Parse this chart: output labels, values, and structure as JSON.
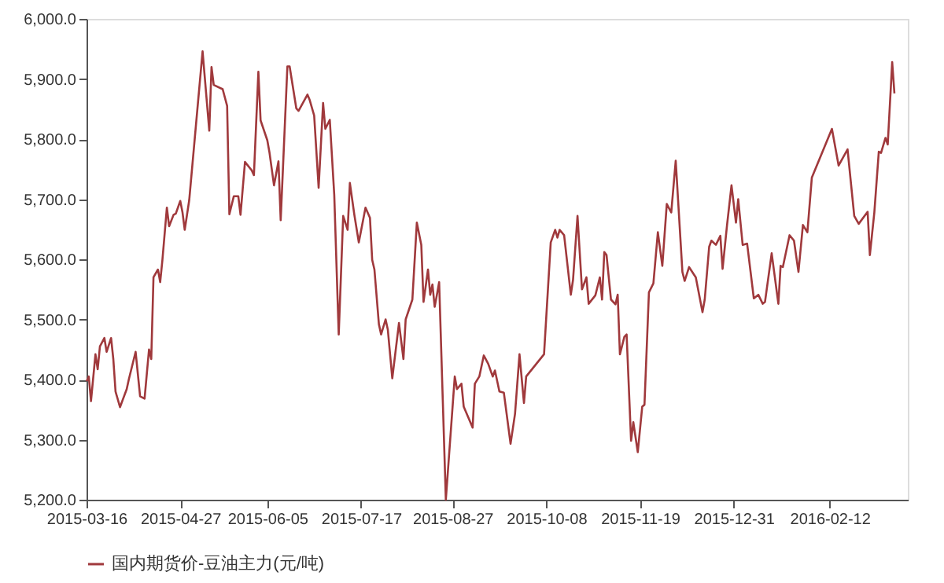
{
  "chart_data": {
    "type": "line",
    "legend": "bottom",
    "grid": false,
    "marker": "none",
    "line_style": "solid",
    "x": [
      "2015-03-16",
      "2015-03-17",
      "2015-03-18",
      "2015-03-20",
      "2015-03-21",
      "2015-03-22",
      "2015-03-24",
      "2015-03-25",
      "2015-03-27",
      "2015-03-28",
      "2015-03-29",
      "2015-03-31",
      "2015-04-03",
      "2015-04-04",
      "2015-04-07",
      "2015-04-09",
      "2015-04-11",
      "2015-04-13",
      "2015-04-14",
      "2015-04-15",
      "2015-04-17",
      "2015-04-18",
      "2015-04-19",
      "2015-04-21",
      "2015-04-22",
      "2015-04-24",
      "2015-04-25",
      "2015-04-27",
      "2015-04-28",
      "2015-04-29",
      "2015-05-01",
      "2015-05-04",
      "2015-05-07",
      "2015-05-10",
      "2015-05-11",
      "2015-05-12",
      "2015-05-16",
      "2015-05-18",
      "2015-05-19",
      "2015-05-21",
      "2015-05-23",
      "2015-05-24",
      "2015-05-26",
      "2015-05-29",
      "2015-05-30",
      "2015-06-01",
      "2015-06-02",
      "2015-06-05",
      "2015-06-06",
      "2015-06-08",
      "2015-06-10",
      "2015-06-11",
      "2015-06-14",
      "2015-06-15",
      "2015-06-18",
      "2015-06-19",
      "2015-06-23",
      "2015-06-24",
      "2015-06-26",
      "2015-06-28",
      "2015-06-30",
      "2015-07-01",
      "2015-07-03",
      "2015-07-05",
      "2015-07-07",
      "2015-07-09",
      "2015-07-11",
      "2015-07-12",
      "2015-07-14",
      "2015-07-16",
      "2015-07-19",
      "2015-07-21",
      "2015-07-22",
      "2015-07-23",
      "2015-07-25",
      "2015-07-26",
      "2015-07-28",
      "2015-07-29",
      "2015-07-31",
      "2015-08-03",
      "2015-08-05",
      "2015-08-06",
      "2015-08-09",
      "2015-08-11",
      "2015-08-13",
      "2015-08-14",
      "2015-08-16",
      "2015-08-17",
      "2015-08-18",
      "2015-08-19",
      "2015-08-20",
      "2015-08-21",
      "2015-08-24",
      "2015-08-28",
      "2015-08-29",
      "2015-08-31",
      "2015-09-01",
      "2015-09-05",
      "2015-09-06",
      "2015-09-08",
      "2015-09-10",
      "2015-09-12",
      "2015-09-14",
      "2015-09-15",
      "2015-09-17",
      "2015-09-19",
      "2015-09-22",
      "2015-09-24",
      "2015-09-26",
      "2015-09-28",
      "2015-09-29",
      "2015-10-07",
      "2015-10-10",
      "2015-10-12",
      "2015-10-13",
      "2015-10-14",
      "2015-10-16",
      "2015-10-19",
      "2015-10-20",
      "2015-10-22",
      "2015-10-24",
      "2015-10-26",
      "2015-10-27",
      "2015-10-30",
      "2015-11-01",
      "2015-11-02",
      "2015-11-03",
      "2015-11-04",
      "2015-11-06",
      "2015-11-08",
      "2015-11-09",
      "2015-11-10",
      "2015-11-12",
      "2015-11-13",
      "2015-11-15",
      "2015-11-16",
      "2015-11-18",
      "2015-11-20",
      "2015-11-21",
      "2015-11-23",
      "2015-11-25",
      "2015-11-27",
      "2015-11-29",
      "2015-12-01",
      "2015-12-03",
      "2015-12-05",
      "2015-12-08",
      "2015-12-09",
      "2015-12-11",
      "2015-12-14",
      "2015-12-17",
      "2015-12-18",
      "2015-12-20",
      "2015-12-21",
      "2015-12-23",
      "2015-12-25",
      "2015-12-26",
      "2015-12-28",
      "2015-12-30",
      "2016-01-01",
      "2016-01-02",
      "2016-01-04",
      "2016-01-06",
      "2016-01-09",
      "2016-01-11",
      "2016-01-13",
      "2016-01-14",
      "2016-01-17",
      "2016-01-20",
      "2016-01-21",
      "2016-01-22",
      "2016-01-25",
      "2016-01-27",
      "2016-01-29",
      "2016-01-31",
      "2016-02-02",
      "2016-02-04",
      "2016-02-13",
      "2016-02-16",
      "2016-02-20",
      "2016-02-23",
      "2016-02-25",
      "2016-02-29",
      "2016-03-01",
      "2016-03-03",
      "2016-03-05",
      "2016-03-06",
      "2016-03-08",
      "2016-03-09",
      "2016-03-11",
      "2016-03-12"
    ],
    "series": [
      {
        "name": "国内期货价-豆油主力(元/吨)",
        "color": "#a0393c",
        "values": [
          5397,
          5405,
          5364,
          5442,
          5417,
          5455,
          5469,
          5446,
          5469,
          5434,
          5380,
          5354,
          5384,
          5401,
          5446,
          5372,
          5368,
          5450,
          5434,
          5570,
          5583,
          5562,
          5599,
          5686,
          5655,
          5674,
          5676,
          5697,
          5678,
          5649,
          5698,
          5822,
          5946,
          5814,
          5920,
          5890,
          5883,
          5855,
          5675,
          5705,
          5705,
          5674,
          5762,
          5748,
          5740,
          5912,
          5831,
          5798,
          5777,
          5723,
          5763,
          5665,
          5921,
          5921,
          5851,
          5847,
          5874,
          5865,
          5839,
          5719,
          5860,
          5817,
          5832,
          5707,
          5475,
          5672,
          5649,
          5727,
          5674,
          5628,
          5686,
          5669,
          5599,
          5583,
          5492,
          5475,
          5500,
          5483,
          5402,
          5494,
          5434,
          5500,
          5533,
          5661,
          5624,
          5529,
          5583,
          5541,
          5558,
          5521,
          5541,
          5562,
          5200,
          5405,
          5384,
          5393,
          5355,
          5320,
          5393,
          5405,
          5440,
          5426,
          5405,
          5415,
          5380,
          5378,
          5293,
          5343,
          5442,
          5361,
          5405,
          5442,
          5628,
          5649,
          5636,
          5649,
          5640,
          5541,
          5566,
          5672,
          5550,
          5570,
          5526,
          5540,
          5570,
          5533,
          5612,
          5607,
          5533,
          5525,
          5541,
          5442,
          5471,
          5475,
          5298,
          5329,
          5279,
          5355,
          5358,
          5545,
          5560,
          5645,
          5589,
          5692,
          5678,
          5764,
          5579,
          5564,
          5587,
          5570,
          5512,
          5533,
          5621,
          5631,
          5624,
          5639,
          5584,
          5657,
          5723,
          5661,
          5700,
          5624,
          5626,
          5535,
          5541,
          5526,
          5529,
          5610,
          5526,
          5589,
          5587,
          5640,
          5631,
          5579,
          5657,
          5645,
          5736,
          5817,
          5756,
          5783,
          5672,
          5659,
          5679,
          5607,
          5678,
          5779,
          5777,
          5802,
          5791,
          5928,
          5876
        ]
      }
    ],
    "xlim": [
      "2015-03-16",
      "2016-03-18"
    ],
    "xticks": [
      "2015-03-16",
      "2015-04-27",
      "2015-06-05",
      "2015-07-17",
      "2015-08-27",
      "2015-10-08",
      "2015-11-19",
      "2015-12-31",
      "2016-02-12"
    ],
    "ylim": [
      5200,
      6000
    ],
    "yticks": [
      {
        "value": 5200,
        "label": "5,200.0"
      },
      {
        "value": 5300,
        "label": "5,300.0"
      },
      {
        "value": 5400,
        "label": "5,400.0"
      },
      {
        "value": 5500,
        "label": "5,500.0"
      },
      {
        "value": 5600,
        "label": "5,600.0"
      },
      {
        "value": 5700,
        "label": "5,700.0"
      },
      {
        "value": 5800,
        "label": "5,800.0"
      },
      {
        "value": 5900,
        "label": "5,900.0"
      },
      {
        "value": 6000,
        "label": "6,000.0"
      }
    ]
  }
}
